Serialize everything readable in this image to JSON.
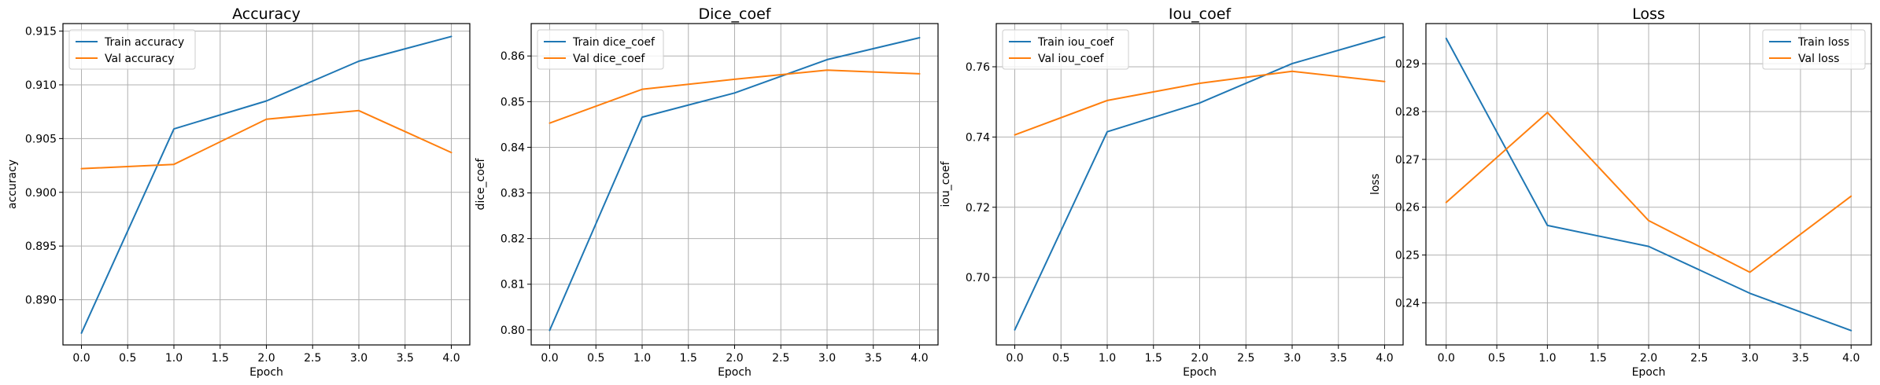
{
  "chart_data": [
    {
      "type": "line",
      "title": "Accuracy",
      "xlabel": "Epoch",
      "ylabel": "accuracy",
      "x": [
        0,
        1,
        2,
        3,
        4
      ],
      "xlim": [
        -0.2,
        4.2
      ],
      "ylim": [
        0.8858,
        0.9157
      ],
      "xticks": [
        0.0,
        0.5,
        1.0,
        1.5,
        2.0,
        2.5,
        3.0,
        3.5,
        4.0
      ],
      "xtick_labels": [
        "0.0",
        "0.5",
        "1.0",
        "1.5",
        "2.0",
        "2.5",
        "3.0",
        "3.5",
        "4.0"
      ],
      "yticks": [
        0.89,
        0.895,
        0.9,
        0.905,
        0.91,
        0.915
      ],
      "ytick_labels": [
        "0.890",
        "0.895",
        "0.900",
        "0.905",
        "0.910",
        "0.915"
      ],
      "grid": true,
      "legend_position": "upper left",
      "series": [
        {
          "name": "Train accuracy",
          "color": "#1f77b4",
          "values": [
            0.8869,
            0.9059,
            0.9085,
            0.9122,
            0.9145
          ]
        },
        {
          "name": "Val accuracy",
          "color": "#ff7f0e",
          "values": [
            0.9022,
            0.9026,
            0.9068,
            0.9076,
            0.9037
          ]
        }
      ]
    },
    {
      "type": "line",
      "title": "Dice_coef",
      "xlabel": "Epoch",
      "ylabel": "dice_coef",
      "x": [
        0,
        1,
        2,
        3,
        4
      ],
      "xlim": [
        -0.2,
        4.2
      ],
      "ylim": [
        0.7967,
        0.8671
      ],
      "xticks": [
        0.0,
        0.5,
        1.0,
        1.5,
        2.0,
        2.5,
        3.0,
        3.5,
        4.0
      ],
      "xtick_labels": [
        "0.0",
        "0.5",
        "1.0",
        "1.5",
        "2.0",
        "2.5",
        "3.0",
        "3.5",
        "4.0"
      ],
      "yticks": [
        0.8,
        0.81,
        0.82,
        0.83,
        0.84,
        0.85,
        0.86
      ],
      "ytick_labels": [
        "0.80",
        "0.81",
        "0.82",
        "0.83",
        "0.84",
        "0.85",
        "0.86"
      ],
      "grid": true,
      "legend_position": "upper left",
      "series": [
        {
          "name": "Train dice_coef",
          "color": "#1f77b4",
          "values": [
            0.7999,
            0.8466,
            0.8519,
            0.8592,
            0.864
          ]
        },
        {
          "name": "Val dice_coef",
          "color": "#ff7f0e",
          "values": [
            0.8453,
            0.8527,
            0.8549,
            0.8569,
            0.8561
          ]
        }
      ]
    },
    {
      "type": "line",
      "title": "Iou_coef",
      "xlabel": "Epoch",
      "ylabel": "iou_coef",
      "x": [
        0,
        1,
        2,
        3,
        4
      ],
      "xlim": [
        -0.2,
        4.2
      ],
      "ylim": [
        0.6808,
        0.7723
      ],
      "xticks": [
        0.0,
        0.5,
        1.0,
        1.5,
        2.0,
        2.5,
        3.0,
        3.5,
        4.0
      ],
      "xtick_labels": [
        "0.0",
        "0.5",
        "1.0",
        "1.5",
        "2.0",
        "2.5",
        "3.0",
        "3.5",
        "4.0"
      ],
      "yticks": [
        0.7,
        0.72,
        0.74,
        0.76
      ],
      "ytick_labels": [
        "0.70",
        "0.72",
        "0.74",
        "0.76"
      ],
      "grid": true,
      "legend_position": "upper left",
      "series": [
        {
          "name": "Train iou_coef",
          "color": "#1f77b4",
          "values": [
            0.6851,
            0.7415,
            0.7497,
            0.7609,
            0.7685
          ]
        },
        {
          "name": "Val iou_coef",
          "color": "#ff7f0e",
          "values": [
            0.7406,
            0.7504,
            0.7553,
            0.7587,
            0.7558
          ]
        }
      ]
    },
    {
      "type": "line",
      "title": "Loss",
      "xlabel": "Epoch",
      "ylabel": "loss",
      "x": [
        0,
        1,
        2,
        3,
        4
      ],
      "xlim": [
        -0.2,
        4.2
      ],
      "ylim": [
        0.2312,
        0.2984
      ],
      "xticks": [
        0.0,
        0.5,
        1.0,
        1.5,
        2.0,
        2.5,
        3.0,
        3.5,
        4.0
      ],
      "xtick_labels": [
        "0.0",
        "0.5",
        "1.0",
        "1.5",
        "2.0",
        "2.5",
        "3.0",
        "3.5",
        "4.0"
      ],
      "yticks": [
        0.24,
        0.25,
        0.26,
        0.27,
        0.28,
        0.29
      ],
      "ytick_labels": [
        "0.24",
        "0.25",
        "0.26",
        "0.27",
        "0.28",
        "0.29"
      ],
      "grid": true,
      "legend_position": "upper right",
      "series": [
        {
          "name": "Train loss",
          "color": "#1f77b4",
          "values": [
            0.2953,
            0.2562,
            0.2518,
            0.242,
            0.2342
          ]
        },
        {
          "name": "Val loss",
          "color": "#ff7f0e",
          "values": [
            0.261,
            0.2798,
            0.2572,
            0.2464,
            0.2623
          ]
        }
      ]
    }
  ]
}
